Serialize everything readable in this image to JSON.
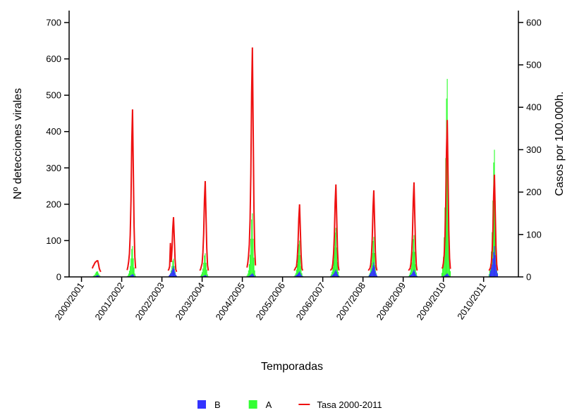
{
  "chart_data": {
    "type": "bar-line",
    "x_label": "Temporadas",
    "y_label": "Nº detecciones virales",
    "y2_label": "Casos por 100.000h.",
    "xlim": [
      -16,
      565
    ],
    "xticks": [
      {
        "value": 0,
        "label": "2000/2001"
      },
      {
        "value": 52,
        "label": "2001/2002"
      },
      {
        "value": 104,
        "label": "2002/2003"
      },
      {
        "value": 156,
        "label": "2003/2004"
      },
      {
        "value": 208,
        "label": "2004/2005"
      },
      {
        "value": 260,
        "label": "2005/2006"
      },
      {
        "value": 312,
        "label": "2006/2007"
      },
      {
        "value": 364,
        "label": "2007/2008"
      },
      {
        "value": 416,
        "label": "2008/2009"
      },
      {
        "value": 468,
        "label": "2009/2010"
      },
      {
        "value": 520,
        "label": "2010/2011"
      }
    ],
    "ylim": [
      0,
      733
    ],
    "yticks": [
      0,
      100,
      200,
      300,
      400,
      500,
      600,
      700
    ],
    "y2lim": [
      0,
      628
    ],
    "y2ticks": [
      0,
      100,
      200,
      300,
      400,
      500,
      600
    ],
    "x": [
      14,
      15,
      16,
      17,
      18,
      19,
      20,
      21,
      22,
      23,
      24,
      25,
      59,
      60,
      61,
      62,
      63,
      64,
      65,
      66,
      67,
      68,
      69,
      70,
      112,
      113,
      114,
      115,
      116,
      117,
      118,
      119,
      120,
      121,
      122,
      123,
      153,
      154,
      155,
      156,
      157,
      158,
      159,
      160,
      161,
      162,
      163,
      164,
      214,
      215,
      216,
      217,
      218,
      219,
      220,
      221,
      222,
      223,
      224,
      225,
      275,
      276,
      277,
      278,
      279,
      280,
      281,
      282,
      283,
      284,
      285,
      286,
      322,
      323,
      324,
      325,
      326,
      327,
      328,
      329,
      330,
      331,
      332,
      333,
      371,
      372,
      373,
      374,
      375,
      376,
      377,
      378,
      379,
      380,
      381,
      382,
      423,
      424,
      425,
      426,
      427,
      428,
      429,
      430,
      431,
      432,
      433,
      434,
      466,
      467,
      468,
      469,
      470,
      471,
      472,
      473,
      474,
      475,
      476,
      477,
      527,
      528,
      529,
      530,
      531,
      532,
      533,
      534,
      535,
      536,
      537,
      538
    ],
    "series": [
      {
        "name": "B",
        "color": "#3333ff",
        "kind": "bar",
        "values": [
          0,
          1,
          1,
          2,
          2,
          3,
          4,
          5,
          4,
          2,
          1,
          0,
          0,
          1,
          2,
          2,
          3,
          5,
          6,
          8,
          6,
          3,
          2,
          1,
          0,
          3,
          6,
          9,
          12,
          18,
          24,
          30,
          21,
          12,
          6,
          3,
          0,
          1,
          1,
          2,
          2,
          3,
          4,
          5,
          4,
          2,
          1,
          0,
          0,
          1,
          2,
          3,
          4,
          6,
          8,
          10,
          7,
          4,
          2,
          1,
          0,
          2,
          3,
          5,
          6,
          9,
          12,
          15,
          11,
          6,
          3,
          2,
          0,
          2,
          4,
          6,
          8,
          12,
          16,
          20,
          14,
          8,
          4,
          2,
          0,
          4,
          8,
          12,
          16,
          24,
          32,
          40,
          28,
          16,
          8,
          4,
          0,
          2,
          4,
          6,
          8,
          12,
          16,
          20,
          14,
          8,
          4,
          2,
          0,
          1,
          2,
          3,
          4,
          6,
          8,
          10,
          7,
          4,
          2,
          1,
          0,
          9,
          17,
          26,
          34,
          51,
          68,
          85,
          60,
          34,
          17,
          9
        ]
      },
      {
        "name": "A",
        "color": "#33ff33",
        "kind": "bar",
        "values": [
          0,
          2,
          4,
          6,
          10,
          14,
          15,
          15,
          10,
          6,
          3,
          0,
          2,
          4,
          9,
          17,
          30,
          51,
          77,
          85,
          51,
          26,
          9,
          3,
          1,
          3,
          5,
          10,
          18,
          30,
          45,
          50,
          30,
          15,
          5,
          2,
          1,
          3,
          7,
          13,
          23,
          39,
          59,
          65,
          39,
          20,
          7,
          2,
          4,
          9,
          18,
          35,
          61,
          105,
          158,
          175,
          105,
          53,
          18,
          5,
          2,
          5,
          10,
          20,
          35,
          60,
          90,
          100,
          60,
          30,
          10,
          3,
          3,
          7,
          14,
          27,
          47,
          81,
          122,
          135,
          81,
          41,
          14,
          4,
          2,
          6,
          11,
          22,
          39,
          66,
          99,
          110,
          66,
          33,
          11,
          3,
          2,
          6,
          12,
          23,
          40,
          69,
          104,
          115,
          69,
          35,
          12,
          3,
          11,
          27,
          55,
          109,
          191,
          327,
          491,
          545,
          327,
          164,
          55,
          16,
          7,
          18,
          35,
          70,
          123,
          210,
          315,
          350,
          210,
          105,
          35,
          11
        ]
      },
      {
        "name": "Tasa 2000-2011",
        "color": "#ee1111",
        "kind": "line",
        "axis": "y2",
        "values": [
          20,
          25,
          28,
          32,
          35,
          36,
          38,
          38,
          30,
          20,
          15,
          12,
          16,
          24,
          36,
          55,
          99,
          178,
          316,
          395,
          257,
          119,
          47,
          20,
          15,
          18,
          25,
          80,
          35,
          63,
          113,
          141,
          92,
          42,
          17,
          12,
          15,
          18,
          25,
          32,
          57,
          102,
          181,
          226,
          147,
          68,
          27,
          15,
          22,
          32,
          49,
          76,
          135,
          243,
          433,
          541,
          352,
          162,
          65,
          27,
          15,
          18,
          22,
          24,
          43,
          77,
          137,
          171,
          111,
          51,
          21,
          15,
          15,
          18,
          20,
          31,
          55,
          98,
          174,
          218,
          142,
          65,
          26,
          15,
          15,
          18,
          20,
          29,
          51,
          92,
          163,
          204,
          133,
          61,
          24,
          15,
          15,
          18,
          20,
          31,
          56,
          100,
          178,
          223,
          145,
          67,
          27,
          15,
          20,
          22,
          33,
          52,
          93,
          167,
          296,
          370,
          241,
          111,
          44,
          19,
          15,
          18,
          22,
          34,
          60,
          108,
          193,
          241,
          157,
          72,
          29,
          15
        ]
      }
    ]
  }
}
